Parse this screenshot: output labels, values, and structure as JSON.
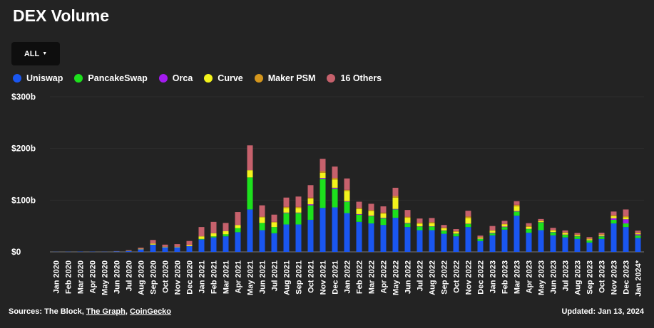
{
  "title": "DEX Volume",
  "filter": {
    "label": "ALL"
  },
  "legend": [
    {
      "name": "Uniswap",
      "color": "#1a56f0"
    },
    {
      "name": "PancakeSwap",
      "color": "#1de01d"
    },
    {
      "name": "Orca",
      "color": "#a31bef"
    },
    {
      "name": "Curve",
      "color": "#f3f31c"
    },
    {
      "name": "Maker PSM",
      "color": "#d4961d"
    },
    {
      "name": "16 Others",
      "color": "#c6616c"
    }
  ],
  "footer": {
    "sources_prefix": "Sources: The Block, ",
    "source_link_1": "The Graph",
    "separator": ", ",
    "source_link_2": "CoinGecko",
    "updated": "Updated: Jan 13, 2024"
  },
  "chart_data": {
    "type": "bar",
    "stacked": true,
    "unit": "billion USD",
    "ylim": [
      0,
      300
    ],
    "yticks": [
      0,
      100,
      200,
      300
    ],
    "ytick_labels": [
      "$0",
      "$100b",
      "$200b",
      "$300b"
    ],
    "categories": [
      "Jan 2020",
      "Feb 2020",
      "Mar 2020",
      "Apr 2020",
      "May 2020",
      "Jun 2020",
      "Jul 2020",
      "Aug 2020",
      "Sep 2020",
      "Oct 2020",
      "Nov 2020",
      "Dec 2020",
      "Jan 2021",
      "Feb 2021",
      "Mar 2021",
      "Apr 2021",
      "May 2021",
      "Jun 2021",
      "Jul 2021",
      "Aug 2021",
      "Sep 2021",
      "Oct 2021",
      "Nov 2021",
      "Dec 2021",
      "Jan 2022",
      "Feb 2022",
      "Mar 2022",
      "Apr 2022",
      "May 2022",
      "Jun 2022",
      "Jul 2022",
      "Aug 2022",
      "Sep 2022",
      "Oct 2022",
      "Nov 2022",
      "Dec 2022",
      "Jan 2023",
      "Feb 2023",
      "Mar 2023",
      "Apr 2023",
      "May 2023",
      "Jun 2023",
      "Jul 2023",
      "Aug 2023",
      "Sep 2023",
      "Oct 2023",
      "Nov 2023",
      "Dec 2023",
      "Jan 2024*"
    ],
    "series": [
      {
        "name": "Uniswap",
        "values": [
          0.2,
          0.3,
          0.5,
          0.4,
          0.5,
          1.0,
          1.8,
          5,
          14,
          9,
          9,
          11,
          24,
          28,
          30,
          38,
          82,
          42,
          36,
          53,
          53,
          62,
          85,
          86,
          75,
          58,
          55,
          52,
          66,
          48,
          42,
          42,
          35,
          30,
          48,
          21,
          32,
          43,
          70,
          37,
          42,
          32,
          28,
          25,
          18,
          25,
          55,
          48,
          27
        ]
      },
      {
        "name": "PancakeSwap",
        "values": [
          0,
          0,
          0,
          0,
          0,
          0,
          0,
          0,
          0,
          0,
          0,
          0,
          1,
          2,
          4,
          8,
          62,
          14,
          12,
          22,
          22,
          28,
          56,
          36,
          22,
          14,
          14,
          13,
          16,
          7,
          7,
          7,
          6,
          5,
          6,
          4,
          4,
          5,
          8,
          7,
          15,
          6,
          5,
          5,
          4,
          5,
          7,
          7,
          5
        ]
      },
      {
        "name": "Orca",
        "values": [
          0,
          0,
          0,
          0,
          0,
          0,
          0,
          0,
          0,
          0,
          0,
          0,
          0,
          0,
          0,
          0,
          0,
          0,
          0,
          1,
          1,
          2,
          2,
          2,
          1,
          1,
          1,
          1,
          1,
          1,
          0.5,
          0.5,
          0.5,
          0.5,
          0.5,
          0.5,
          1,
          1,
          1,
          0.5,
          0.5,
          0.5,
          0.5,
          0.5,
          0.5,
          1,
          3,
          8,
          2
        ]
      },
      {
        "name": "Curve",
        "values": [
          0,
          0,
          0,
          0,
          0.1,
          0.2,
          0.5,
          1,
          2,
          1,
          1,
          2,
          5,
          6,
          6,
          6,
          14,
          11,
          9,
          9,
          9,
          11,
          10,
          16,
          20,
          10,
          9,
          8,
          22,
          10,
          5,
          6,
          4,
          3,
          11,
          2,
          4,
          4,
          9,
          4,
          2,
          3,
          3,
          2,
          2,
          2,
          4,
          4,
          2
        ]
      },
      {
        "name": "Maker PSM",
        "values": [
          0,
          0,
          0,
          0,
          0,
          0,
          0,
          0,
          0,
          0,
          0,
          0,
          0,
          0,
          0,
          0,
          0,
          1,
          1,
          2,
          2,
          2,
          3,
          3,
          2,
          2,
          2,
          2,
          3,
          2,
          2,
          2,
          1.5,
          1.5,
          3,
          1,
          1,
          1,
          3,
          2,
          1,
          1,
          1,
          1,
          1,
          1,
          2,
          2,
          1
        ]
      },
      {
        "name": "16 Others",
        "values": [
          0,
          0,
          0,
          0,
          0.1,
          0.3,
          1,
          2,
          7,
          4,
          5,
          8,
          18,
          22,
          16,
          25,
          48,
          22,
          14,
          18,
          20,
          24,
          24,
          22,
          22,
          12,
          12,
          12,
          16,
          13,
          8,
          8,
          5,
          4,
          11,
          3,
          8,
          6,
          7,
          5,
          3,
          4,
          4,
          3,
          3,
          3,
          7,
          13,
          4
        ]
      }
    ]
  }
}
